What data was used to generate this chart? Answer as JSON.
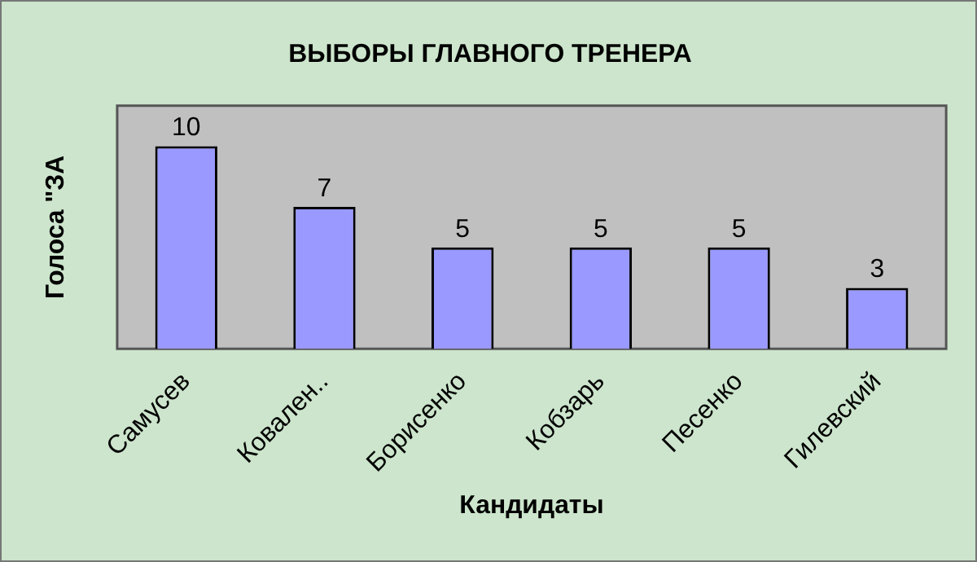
{
  "chart_data": {
    "type": "bar",
    "title": "ВЫБОРЫ ГЛАВНОГО ТРЕНЕРА",
    "xlabel": "Кандидаты",
    "ylabel": "Голоса \"ЗА",
    "categories": [
      "Самусев",
      "Ковален..",
      "Борисенко",
      "Кобзарь",
      "Песенко",
      "Гилевский"
    ],
    "values": [
      10,
      7,
      5,
      5,
      5,
      3
    ],
    "color": "#9999ff",
    "data_labels": true
  }
}
